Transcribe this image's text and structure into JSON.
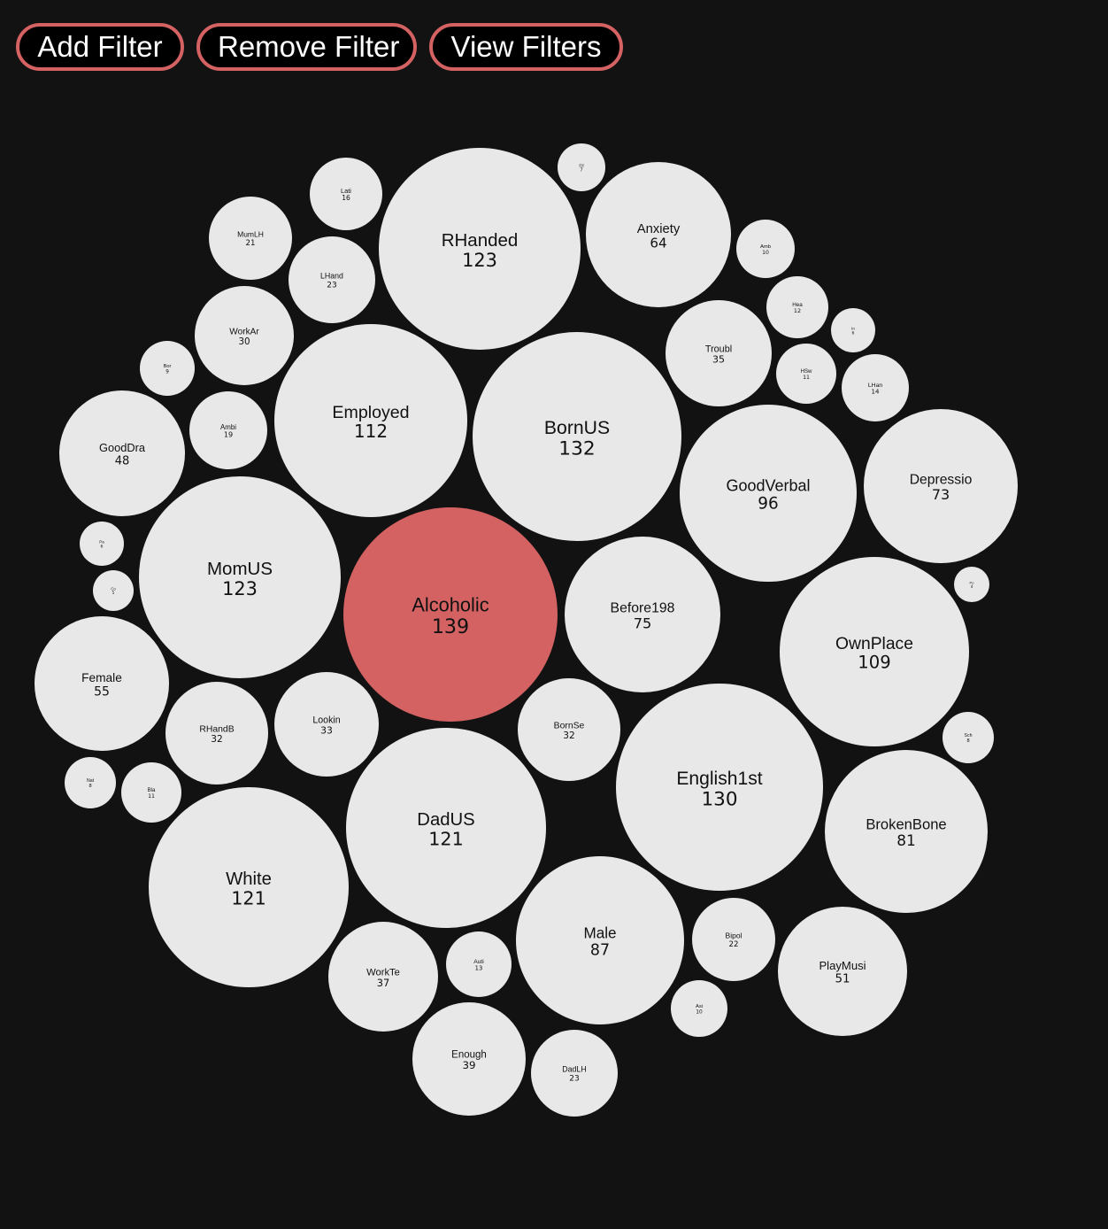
{
  "toolbar": {
    "add_filter": "Add Filter",
    "remove_filter": "Remove Filter",
    "view_filters": "View Filters",
    "button_border_color": "#d46262"
  },
  "colors": {
    "bubble": "#e8e8e8",
    "selected_bubble": "#d46262",
    "background": "#121212"
  },
  "bubbles": [
    {
      "label": "Alcoholic",
      "count": "139",
      "selected": true
    },
    {
      "label": "BornUS",
      "count": "132"
    },
    {
      "label": "English1st",
      "count": "130"
    },
    {
      "label": "RHanded",
      "count": "123"
    },
    {
      "label": "MomUS",
      "count": "123"
    },
    {
      "label": "DadUS",
      "count": "121"
    },
    {
      "label": "White",
      "count": "121"
    },
    {
      "label": "Employed",
      "count": "112"
    },
    {
      "label": "OwnPlace",
      "count": "109"
    },
    {
      "label": "GoodVerbal",
      "count": "96"
    },
    {
      "label": "Male",
      "count": "87"
    },
    {
      "label": "BrokenBone",
      "count": "81"
    },
    {
      "label": "Before198",
      "count": "75"
    },
    {
      "label": "Depressio",
      "count": "73"
    },
    {
      "label": "Anxiety",
      "count": "64"
    },
    {
      "label": "Female",
      "count": "55"
    },
    {
      "label": "PlayMusi",
      "count": "51"
    },
    {
      "label": "GoodDra",
      "count": "48"
    },
    {
      "label": "Enough",
      "count": "39"
    },
    {
      "label": "WorkTe",
      "count": "37"
    },
    {
      "label": "Troubl",
      "count": "35"
    },
    {
      "label": "Lookin",
      "count": "33"
    },
    {
      "label": "RHandB",
      "count": "32"
    },
    {
      "label": "BornSe",
      "count": "32"
    },
    {
      "label": "WorkAr",
      "count": "30"
    },
    {
      "label": "LHand",
      "count": "23"
    },
    {
      "label": "DadLH",
      "count": "23"
    },
    {
      "label": "Bipol",
      "count": "22"
    },
    {
      "label": "MumLH",
      "count": "21"
    },
    {
      "label": "Ambi",
      "count": "19"
    },
    {
      "label": "Lati",
      "count": "16"
    },
    {
      "label": "LHan",
      "count": "14"
    },
    {
      "label": "Auti",
      "count": "13"
    },
    {
      "label": "Hea",
      "count": "12"
    },
    {
      "label": "HSw",
      "count": "11"
    },
    {
      "label": "Bla",
      "count": "11"
    },
    {
      "label": "Amb",
      "count": "10"
    },
    {
      "label": "Asi",
      "count": "10"
    },
    {
      "label": "Bor",
      "count": "9"
    },
    {
      "label": "Nat",
      "count": "8"
    },
    {
      "label": "Sch",
      "count": "8"
    },
    {
      "label": "Fil",
      "count": "7"
    },
    {
      "label": "In",
      "count": "6"
    },
    {
      "label": "Pa",
      "count": "6"
    },
    {
      "label": "Co",
      "count": "5"
    },
    {
      "label": "Po",
      "count": "4"
    }
  ]
}
